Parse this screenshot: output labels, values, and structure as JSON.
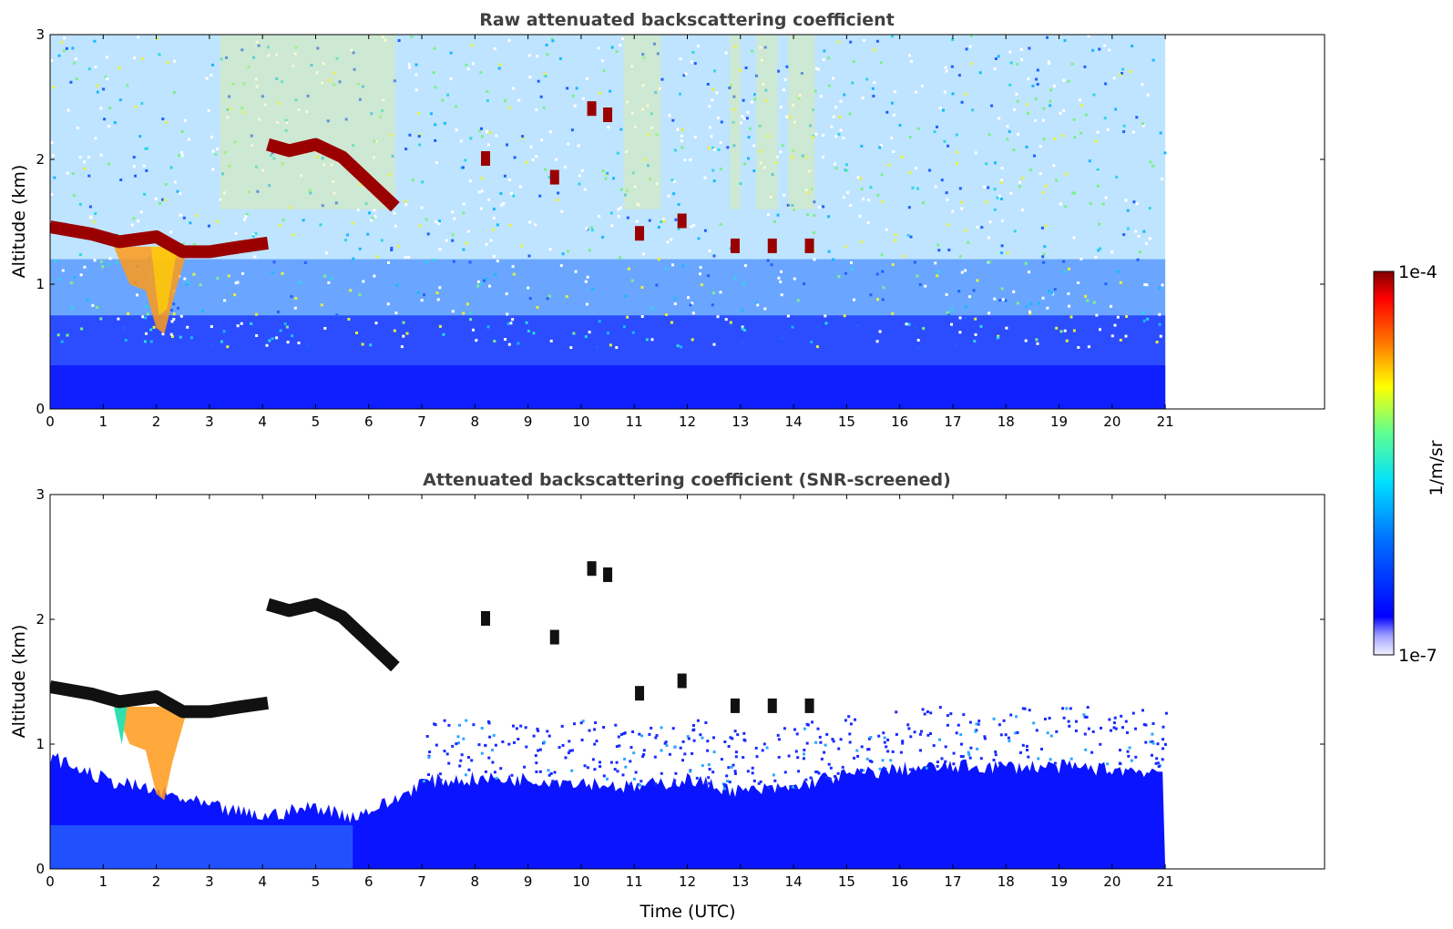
{
  "chart_data": [
    {
      "type": "heatmap",
      "title": "Raw attenuated backscattering coefficient",
      "xlabel": "",
      "ylabel": "Altitude (km)",
      "xlim": [
        0,
        24
      ],
      "ylim": [
        0,
        3
      ],
      "data_time_range": [
        0,
        21
      ],
      "x_ticks": [
        "0",
        "1",
        "2",
        "3",
        "4",
        "5",
        "6",
        "7",
        "8",
        "9",
        "10",
        "11",
        "12",
        "13",
        "14",
        "15",
        "16",
        "17",
        "18",
        "19",
        "20",
        "21"
      ],
      "y_ticks": [
        "0",
        "1",
        "2",
        "3"
      ],
      "features": [
        {
          "name": "cloud_layer_1",
          "x": [
            0,
            0.8,
            1.3,
            2,
            2.5,
            3,
            3.6,
            4.1
          ],
          "y": [
            1.46,
            1.4,
            1.34,
            1.38,
            1.26,
            1.26,
            1.3,
            1.33
          ]
        },
        {
          "name": "cloud_layer_2",
          "x": [
            4.1,
            4.5,
            5,
            5.5,
            6,
            6.5
          ],
          "y": [
            2.12,
            2.07,
            2.12,
            2.02,
            1.82,
            1.62
          ]
        },
        {
          "name": "aerosol_plume",
          "x": [
            1.3,
            1.6,
            1.9,
            2.1,
            2.3
          ],
          "y": [
            1.1,
            0.95,
            0.75,
            0.6,
            0.9
          ]
        },
        {
          "name": "cloud_fragments",
          "x": [
            8.2,
            9.5,
            10.2,
            10.5,
            11.1,
            11.9,
            12.9,
            13.6,
            14.3
          ],
          "y": [
            2.0,
            1.85,
            2.4,
            2.35,
            1.4,
            1.5,
            1.3,
            1.3,
            1.3
          ]
        }
      ]
    },
    {
      "type": "heatmap",
      "title": "Attenuated backscattering coefficient (SNR-screened)",
      "xlabel": "Time (UTC)",
      "ylabel": "Altitude (km)",
      "xlim": [
        0,
        24
      ],
      "ylim": [
        0,
        3
      ],
      "data_time_range": [
        0,
        21
      ],
      "x_ticks": [
        "0",
        "1",
        "2",
        "3",
        "4",
        "5",
        "6",
        "7",
        "8",
        "9",
        "10",
        "11",
        "12",
        "13",
        "14",
        "15",
        "16",
        "17",
        "18",
        "19",
        "20",
        "21"
      ],
      "y_ticks": [
        "0",
        "1",
        "2",
        "3"
      ],
      "boundary_layer_top": {
        "x": [
          0,
          1,
          2,
          3,
          4,
          5,
          5.7,
          6.5,
          7,
          8,
          9,
          10,
          11,
          12,
          13,
          14,
          14.5,
          15,
          16,
          17,
          18,
          19,
          20,
          21
        ],
        "y": [
          0.9,
          0.72,
          0.62,
          0.5,
          0.42,
          0.5,
          0.42,
          0.55,
          0.7,
          0.72,
          0.72,
          0.7,
          0.65,
          0.72,
          0.62,
          0.65,
          0.72,
          0.75,
          0.8,
          0.82,
          0.82,
          0.82,
          0.8,
          0.78
        ]
      }
    }
  ],
  "colorbar": {
    "label": "1/m/sr",
    "max_label": "1e-4",
    "min_label": "1e-7",
    "colormap": "jet",
    "min_value": 1e-07,
    "max_value": 0.0001
  }
}
